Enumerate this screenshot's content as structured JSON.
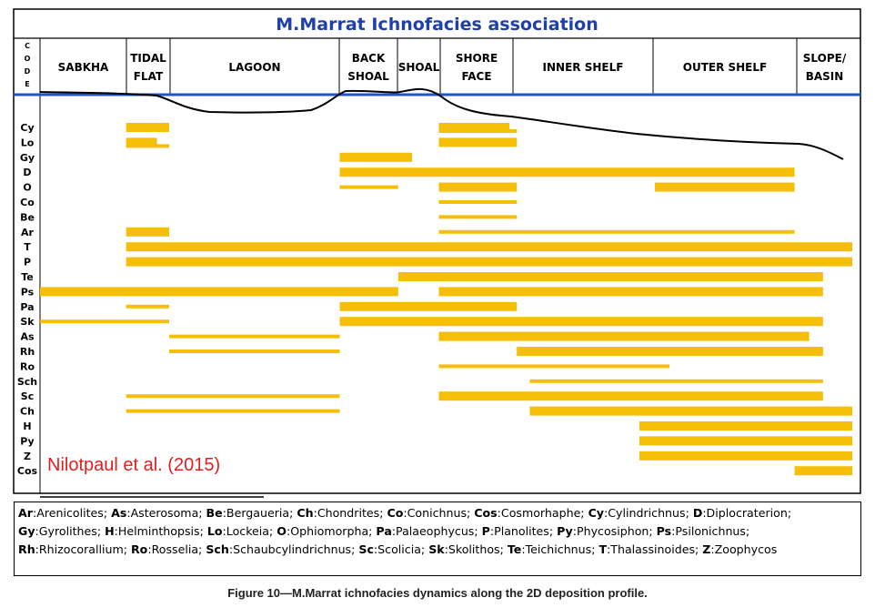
{
  "chart_data": {
    "type": "gantt",
    "title": "M.Marrat Ichnofacies association",
    "code_header": "CODE",
    "zones": [
      {
        "label": "SABKHA"
      },
      {
        "label": "TIDAL\nFLAT"
      },
      {
        "label": "LAGOON"
      },
      {
        "label": "BACK\nSHOAL"
      },
      {
        "label": "SHOAL"
      },
      {
        "label": "SHORE\nFACE"
      },
      {
        "label": "INNER SHELF"
      },
      {
        "label": "OUTER SHELF"
      },
      {
        "label": "SLOPE/\nBASIN"
      }
    ],
    "rows": [
      "Cy",
      "Lo",
      "Gy",
      "D",
      "O",
      "Co",
      "Be",
      "Ar",
      "T",
      "P",
      "Te",
      "Ps",
      "Pa",
      "Sk",
      "As",
      "Rh",
      "Ro",
      "Sch",
      "Sc",
      "Ch",
      "H",
      "Py",
      "Z",
      "Cos"
    ],
    "x_range": [
      0,
      100
    ],
    "bars": [
      {
        "code": "Cy",
        "segments": [
          [
            10.6,
            15.9,
            "thick"
          ],
          [
            49.1,
            57.8,
            "thick"
          ],
          [
            49.1,
            58.7,
            "thin"
          ]
        ]
      },
      {
        "code": "Lo",
        "segments": [
          [
            10.6,
            14.4,
            "thick"
          ],
          [
            10.6,
            15.9,
            "thin"
          ],
          [
            49.1,
            58.7,
            "thick"
          ]
        ]
      },
      {
        "code": "Gy",
        "segments": [
          [
            36.9,
            45.8,
            "thick"
          ]
        ]
      },
      {
        "code": "D",
        "segments": [
          [
            36.9,
            92.9,
            "thick"
          ]
        ]
      },
      {
        "code": "O",
        "segments": [
          [
            36.9,
            44.1,
            "thin"
          ],
          [
            49.1,
            58.7,
            "thick"
          ],
          [
            75.7,
            92.9,
            "thick"
          ]
        ]
      },
      {
        "code": "Co",
        "segments": [
          [
            49.1,
            58.7,
            "thin"
          ]
        ]
      },
      {
        "code": "Be",
        "segments": [
          [
            49.1,
            58.7,
            "thin"
          ]
        ]
      },
      {
        "code": "Ar",
        "segments": [
          [
            10.6,
            15.9,
            "thick"
          ],
          [
            49.1,
            92.9,
            "thin"
          ]
        ]
      },
      {
        "code": "T",
        "segments": [
          [
            10.6,
            100,
            "thick"
          ]
        ]
      },
      {
        "code": "P",
        "segments": [
          [
            10.6,
            100,
            "thick"
          ]
        ]
      },
      {
        "code": "Te",
        "segments": [
          [
            44.1,
            96.4,
            "thick"
          ]
        ]
      },
      {
        "code": "Ps",
        "segments": [
          [
            0,
            44.1,
            "thick"
          ],
          [
            49.1,
            96.4,
            "thick"
          ]
        ]
      },
      {
        "code": "Pa",
        "segments": [
          [
            10.6,
            15.9,
            "thin"
          ],
          [
            36.9,
            58.7,
            "thick"
          ]
        ]
      },
      {
        "code": "Sk",
        "segments": [
          [
            0,
            15.9,
            "thin"
          ],
          [
            36.9,
            96.4,
            "thick"
          ]
        ]
      },
      {
        "code": "As",
        "segments": [
          [
            15.9,
            36.9,
            "thin"
          ],
          [
            49.1,
            94.7,
            "thick"
          ]
        ]
      },
      {
        "code": "Rh",
        "segments": [
          [
            15.9,
            36.9,
            "thin"
          ],
          [
            58.7,
            96.4,
            "thick"
          ]
        ]
      },
      {
        "code": "Ro",
        "segments": [
          [
            49.1,
            77.5,
            "thin"
          ]
        ]
      },
      {
        "code": "Sch",
        "segments": [
          [
            60.3,
            96.4,
            "thin"
          ]
        ]
      },
      {
        "code": "Sc",
        "segments": [
          [
            10.6,
            36.9,
            "thin"
          ],
          [
            49.1,
            96.4,
            "thick"
          ]
        ]
      },
      {
        "code": "Ch",
        "segments": [
          [
            10.6,
            36.9,
            "thin"
          ],
          [
            60.3,
            100,
            "thick"
          ]
        ]
      },
      {
        "code": "H",
        "segments": [
          [
            73.8,
            100,
            "thick"
          ]
        ]
      },
      {
        "code": "Py",
        "segments": [
          [
            73.8,
            100,
            "thick"
          ]
        ]
      },
      {
        "code": "Z",
        "segments": [
          [
            73.8,
            100,
            "thick"
          ]
        ]
      },
      {
        "code": "Cos",
        "segments": [
          [
            92.9,
            100,
            "thick"
          ]
        ]
      }
    ],
    "bar_color": "#F5BE09",
    "sea_level_color": "#1F55C8",
    "title_color": "#1F3FAA",
    "annotation": "Nilotpaul et al. (2015)",
    "annotation_color": "#E02020",
    "grid": false,
    "profile_curve": true
  },
  "legend_items": [
    {
      "code": "Ar",
      "name": "Arenicolites"
    },
    {
      "code": "As",
      "name": "Asterosoma"
    },
    {
      "code": "Be",
      "name": "Bergaueria"
    },
    {
      "code": "Ch",
      "name": "Chondrites"
    },
    {
      "code": "Co",
      "name": "Conichnus"
    },
    {
      "code": "Cos",
      "name": "Cosmorhaphe"
    },
    {
      "code": "Cy",
      "name": "Cylindrichnus"
    },
    {
      "code": "D",
      "name": "Diplocraterion"
    },
    {
      "code": "Gy",
      "name": "Gyrolithes"
    },
    {
      "code": "H",
      "name": "Helminthopsis"
    },
    {
      "code": "Lo",
      "name": "Lockeia"
    },
    {
      "code": "O",
      "name": "Ophiomorpha"
    },
    {
      "code": "Pa",
      "name": "Palaeophycus"
    },
    {
      "code": "P",
      "name": "Planolites"
    },
    {
      "code": "Py",
      "name": "Phycosiphon"
    },
    {
      "code": "Ps",
      "name": "Psilonichnus"
    },
    {
      "code": "Rh",
      "name": "Rhizocorallium"
    },
    {
      "code": "Ro",
      "name": "Rosselia"
    },
    {
      "code": "Sch",
      "name": "Schaubcylindrichnus"
    },
    {
      "code": "Sc",
      "name": "Scolicia"
    },
    {
      "code": "Sk",
      "name": "Skolithos"
    },
    {
      "code": "Te",
      "name": "Teichichnus"
    },
    {
      "code": "T",
      "name": "Thalassinoides"
    },
    {
      "code": "Z",
      "name": "Zoophycos"
    }
  ],
  "caption": "Figure 10—M.Marrat ichnofacies dynamics along the 2D deposition profile."
}
